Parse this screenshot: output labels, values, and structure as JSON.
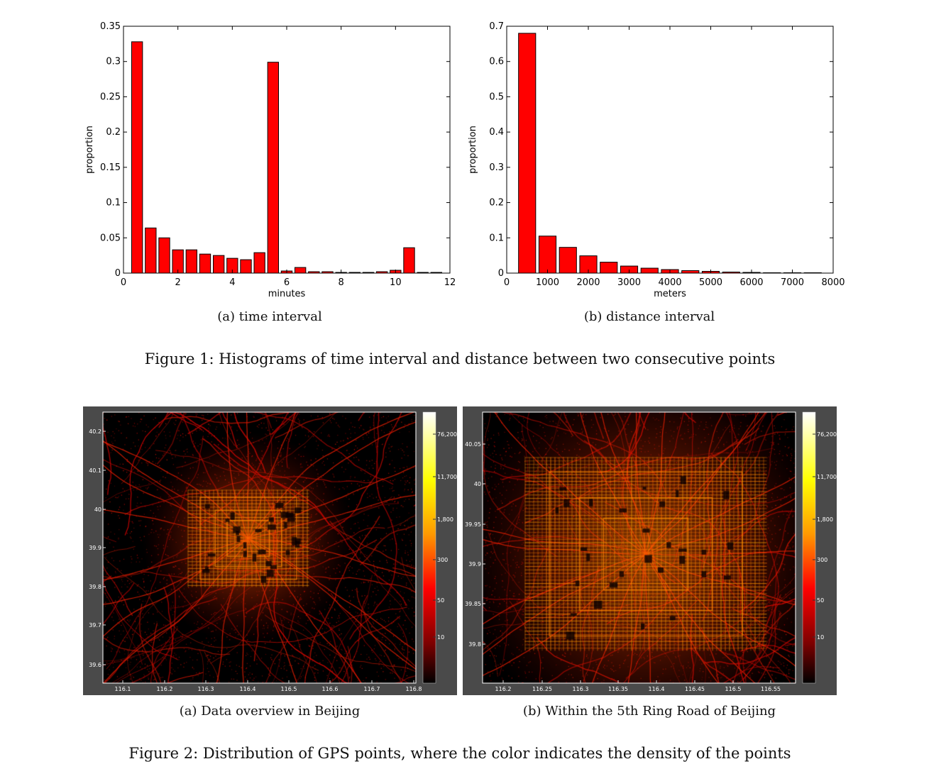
{
  "figure1": {
    "caption": "Figure 1: Histograms of time interval and distance between two consecutive points",
    "subcaptions": [
      "(a) time interval",
      "(b) distance interval"
    ]
  },
  "figure2": {
    "caption": "Figure 2: Distribution of GPS points, where the color indicates the density of the points",
    "subcaptions": [
      "(a) Data overview in Beijing",
      "(b) Within the 5th Ring Road of Beijing"
    ],
    "colorbar_labels": [
      "76,200",
      "11,700",
      "1,800",
      "300",
      "50",
      "10"
    ],
    "maps": [
      {
        "lat_ticks": [
          "40.2",
          "40.1",
          "40",
          "39.9",
          "39.8",
          "39.7",
          "39.6"
        ],
        "lon_ticks": [
          "116.1",
          "116.2",
          "116.3",
          "116.4",
          "116.5",
          "116.6",
          "116.7",
          "116.8"
        ]
      },
      {
        "lat_ticks": [
          "40.05",
          "40",
          "39.95",
          "39.9",
          "39.85",
          "39.8"
        ],
        "lon_ticks": [
          "116.2",
          "116.25",
          "116.3",
          "116.35",
          "116.4",
          "116.45",
          "116.5",
          "116.55"
        ]
      }
    ]
  },
  "chart_data": [
    {
      "type": "bar",
      "xlabel": "minutes",
      "ylabel": "proportion",
      "xlim": [
        0,
        12
      ],
      "ylim": [
        0,
        0.35
      ],
      "xticks": [
        0,
        2,
        4,
        6,
        8,
        10,
        12
      ],
      "yticks": [
        0,
        0.05,
        0.1,
        0.15,
        0.2,
        0.25,
        0.3,
        0.35
      ],
      "ytick_labels": [
        "0",
        "0.05",
        "0.1",
        "0.15",
        "0.2",
        "0.25",
        "0.3",
        "0.35"
      ],
      "bar_width": 0.4,
      "x": [
        0.5,
        1.0,
        1.5,
        2.0,
        2.5,
        3.0,
        3.5,
        4.0,
        4.5,
        5.0,
        5.5,
        6.0,
        6.5,
        7.0,
        7.5,
        8.0,
        8.5,
        9.0,
        9.5,
        10.0,
        10.5,
        11.0,
        11.5
      ],
      "values": [
        0.328,
        0.064,
        0.05,
        0.033,
        0.033,
        0.027,
        0.025,
        0.021,
        0.019,
        0.029,
        0.299,
        0.003,
        0.008,
        0.002,
        0.002,
        0.001,
        0.001,
        0.001,
        0.002,
        0.004,
        0.036,
        0.001,
        0.001
      ],
      "color": "#ff0000"
    },
    {
      "type": "bar",
      "xlabel": "meters",
      "ylabel": "proportion",
      "xlim": [
        0,
        8000
      ],
      "ylim": [
        0,
        0.7
      ],
      "xticks": [
        0,
        1000,
        2000,
        3000,
        4000,
        5000,
        6000,
        7000,
        8000
      ],
      "yticks": [
        0,
        0.1,
        0.2,
        0.3,
        0.4,
        0.5,
        0.6,
        0.7
      ],
      "ytick_labels": [
        "0",
        "0.1",
        "0.2",
        "0.3",
        "0.4",
        "0.5",
        "0.6",
        "0.7"
      ],
      "bar_width": 420,
      "x": [
        500,
        1000,
        1500,
        2000,
        2500,
        3000,
        3500,
        4000,
        4500,
        5000,
        5500,
        6000,
        6500,
        7000,
        7500
      ],
      "values": [
        0.68,
        0.105,
        0.073,
        0.049,
        0.031,
        0.02,
        0.014,
        0.01,
        0.007,
        0.005,
        0.003,
        0.002,
        0.001,
        0.001,
        0.001
      ],
      "color": "#ff0000"
    }
  ]
}
